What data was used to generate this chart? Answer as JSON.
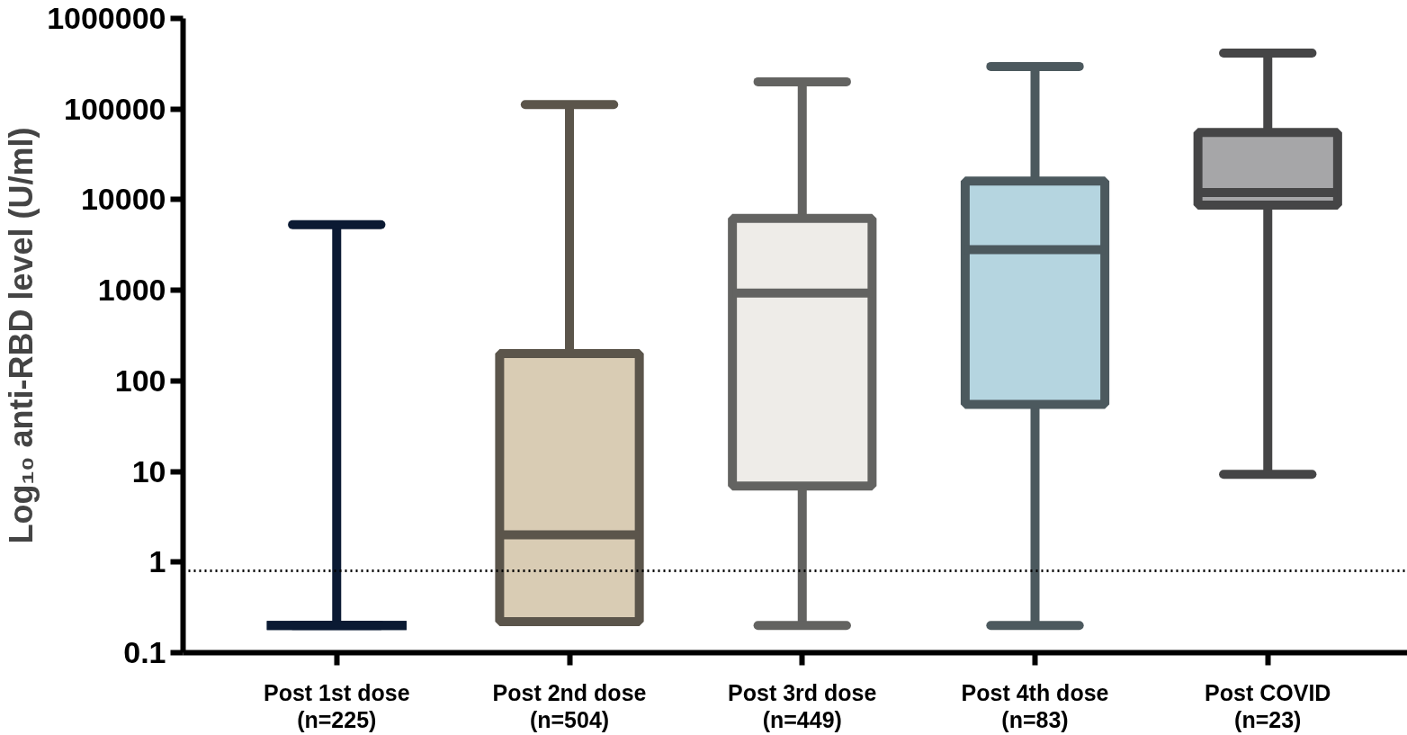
{
  "chart_data": {
    "type": "box",
    "ylabel": "Log₁₀ anti-RBD level (U/ml)",
    "categories": [
      "Post 1st dose\n(n=225)",
      "Post 2nd dose\n(n=504)",
      "Post 3rd dose\n(n=449)",
      "Post 4th dose\n(n=83)",
      "Post COVID\n(n=23)"
    ],
    "boxes": [
      {
        "low": 0.2,
        "q1": 0.2,
        "median": 0.2,
        "q3": 0.2,
        "high": 5300
      },
      {
        "low": 0.22,
        "q1": 0.22,
        "median": 2.0,
        "q3": 200,
        "high": 112000
      },
      {
        "low": 0.2,
        "q1": 6.9,
        "median": 930,
        "q3": 6200,
        "high": 200000
      },
      {
        "low": 0.2,
        "q1": 55,
        "median": 2800,
        "q3": 16000,
        "high": 295000
      },
      {
        "low": 9.3,
        "q1": 8700,
        "median": 12000,
        "q3": 55000,
        "high": 415000
      }
    ],
    "colors": [
      "#0b1a33",
      "#d9ccb4",
      "#eeece8",
      "#b5d5e0",
      "#a6a6a8"
    ],
    "log": "y",
    "ylim": [
      0.1,
      1000000
    ],
    "yticks": [
      0.1,
      1,
      10,
      100,
      1000,
      10000,
      100000,
      1000000
    ],
    "ref_lines": [
      {
        "axis": "y",
        "value": 0.8,
        "line_style": "dotted",
        "color": "#000000"
      }
    ],
    "grid": false
  }
}
